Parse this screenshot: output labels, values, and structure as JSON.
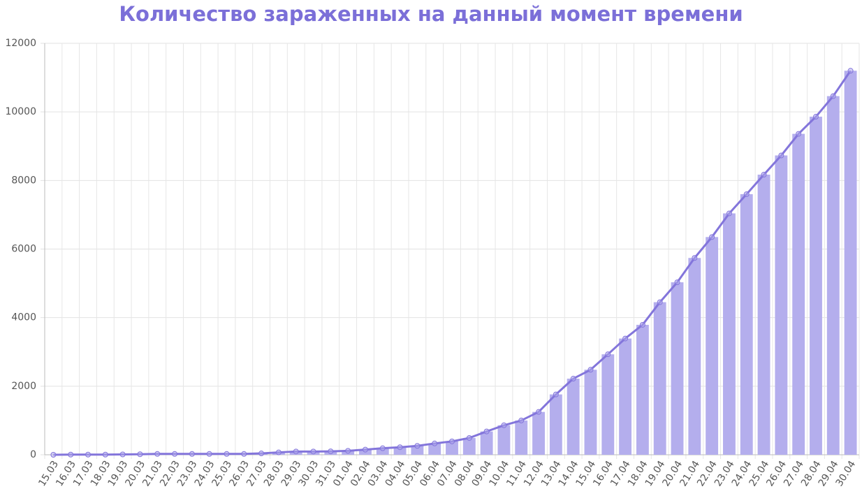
{
  "chart_data": {
    "type": "combo",
    "title": "Количество зараженных на данный момент времени",
    "categories": [
      "15.03",
      "16.03",
      "17.03",
      "18.03",
      "19.03",
      "20.03",
      "21.03",
      "22.03",
      "23.03",
      "24.03",
      "25.03",
      "26.03",
      "27.03",
      "28.03",
      "29.03",
      "30.03",
      "31.03",
      "01.04",
      "02.04",
      "03.04",
      "04.04",
      "05.04",
      "06.04",
      "07.04",
      "08.04",
      "09.04",
      "10.04",
      "11.04",
      "12.04",
      "13.04",
      "14.04",
      "15.04",
      "16.04",
      "17.04",
      "18.04",
      "19.04",
      "20.04",
      "21.04",
      "22.04",
      "23.04",
      "24.04",
      "25.04",
      "26.04",
      "27.04",
      "28.04",
      "29.04",
      "30.04"
    ],
    "series": [
      {
        "type": "bar",
        "color": "#b4aeed",
        "values": [
          0,
          5,
          5,
          5,
          10,
          15,
          25,
          25,
          25,
          25,
          25,
          25,
          40,
          70,
          95,
          95,
          100,
          115,
          150,
          190,
          220,
          260,
          330,
          390,
          490,
          680,
          860,
          1000,
          1250,
          1760,
          2220,
          2480,
          2930,
          3390,
          3790,
          4450,
          5030,
          5740,
          6350,
          7040,
          7600,
          8170,
          8730,
          9360,
          9860,
          10460,
          11200
        ]
      },
      {
        "type": "line",
        "color": "#8375db",
        "values": [
          0,
          5,
          5,
          5,
          10,
          15,
          25,
          25,
          25,
          25,
          25,
          25,
          40,
          70,
          95,
          95,
          100,
          115,
          150,
          190,
          220,
          260,
          330,
          390,
          490,
          680,
          860,
          1000,
          1250,
          1760,
          2220,
          2480,
          2930,
          3390,
          3790,
          4450,
          5030,
          5740,
          6350,
          7040,
          7600,
          8170,
          8730,
          9360,
          9860,
          10460,
          11200
        ]
      }
    ],
    "ylim": [
      0,
      12000
    ],
    "yticks": [
      0,
      2000,
      4000,
      6000,
      8000,
      10000,
      12000
    ],
    "grid": true
  }
}
